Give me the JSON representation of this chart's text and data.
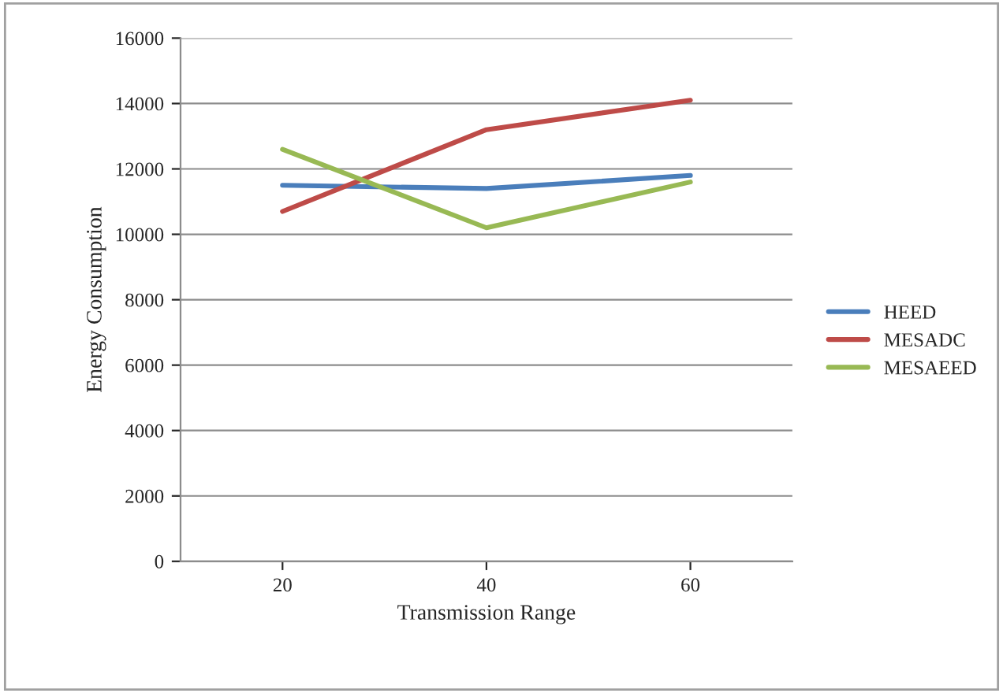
{
  "chart_data": {
    "type": "line",
    "xlabel": "Transmission Range",
    "ylabel": "Energy Consumption",
    "categories": [
      "20",
      "40",
      "60"
    ],
    "series": [
      {
        "name": "HEED",
        "color": "#4a7ebb",
        "values": [
          11500,
          11400,
          11800
        ]
      },
      {
        "name": "MESADC",
        "color": "#be4b48",
        "values": [
          10700,
          13200,
          14100
        ]
      },
      {
        "name": "MESAEED",
        "color": "#98b954",
        "values": [
          12600,
          10200,
          11600
        ]
      }
    ],
    "ylim": [
      0,
      16000
    ],
    "yticks": [
      0,
      2000,
      4000,
      6000,
      8000,
      10000,
      12000,
      14000,
      16000
    ],
    "grid": "y",
    "legend": "right",
    "marker": "none",
    "line_style": "solid"
  }
}
